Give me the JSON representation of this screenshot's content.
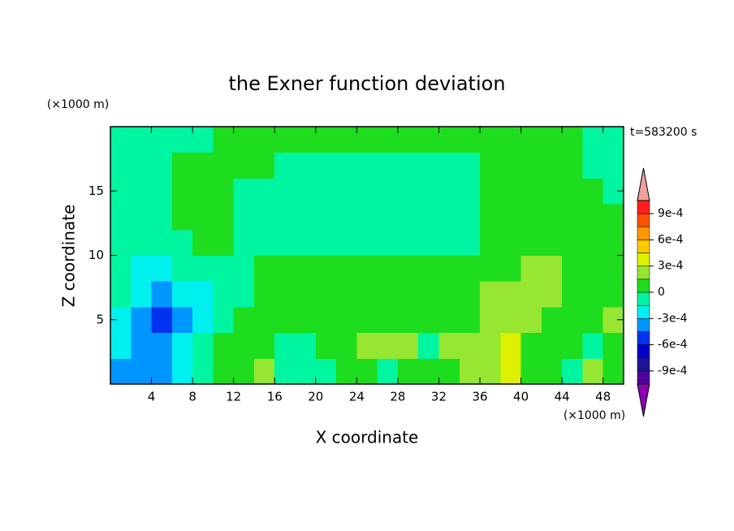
{
  "chart_data": {
    "type": "contour",
    "title": "the Exner function deviation",
    "xlabel": "X coordinate",
    "ylabel": "Z coordinate",
    "x_unit": "(×1000 m)",
    "y_unit": "(×1000 m)",
    "annotation": "t=583200 s",
    "xlim": [
      0,
      50
    ],
    "ylim": [
      0,
      20
    ],
    "xticks": [
      4,
      8,
      12,
      16,
      20,
      24,
      28,
      32,
      36,
      40,
      44,
      48
    ],
    "yticks": [
      5,
      10,
      15
    ],
    "x": [
      1,
      3,
      5,
      7,
      9,
      11,
      13,
      15,
      17,
      19,
      21,
      23,
      25,
      27,
      29,
      31,
      33,
      35,
      37,
      39,
      41,
      43,
      45,
      47,
      49
    ],
    "z": [
      1,
      3,
      5,
      7,
      9,
      11,
      13,
      15,
      17,
      19
    ],
    "values": [
      [
        -0.000375,
        -0.000375,
        -0.000375,
        -0.000225,
        -7.5e-05,
        7.5e-05,
        7.5e-05,
        0.000225,
        -7.5e-05,
        -7.5e-05,
        -7.5e-05,
        7.5e-05,
        7.5e-05,
        -7.5e-05,
        7.5e-05,
        7.5e-05,
        7.5e-05,
        0.000225,
        0.000225,
        0.000375,
        7.5e-05,
        7.5e-05,
        -7.5e-05,
        0.000225,
        7.5e-05
      ],
      [
        -0.000225,
        -0.000375,
        -0.000375,
        -0.000225,
        -7.5e-05,
        7.5e-05,
        7.5e-05,
        7.5e-05,
        -7.5e-05,
        -7.5e-05,
        7.5e-05,
        7.5e-05,
        0.000225,
        0.000225,
        0.000225,
        -7.5e-05,
        0.000225,
        0.000225,
        0.000225,
        0.000375,
        7.5e-05,
        7.5e-05,
        7.5e-05,
        -7.5e-05,
        7.5e-05
      ],
      [
        -0.000225,
        -0.000375,
        -0.000525,
        -0.000375,
        -0.000225,
        -7.5e-05,
        7.5e-05,
        7.5e-05,
        7.5e-05,
        7.5e-05,
        7.5e-05,
        7.5e-05,
        7.5e-05,
        7.5e-05,
        7.5e-05,
        7.5e-05,
        7.5e-05,
        7.5e-05,
        0.000225,
        0.000225,
        0.000225,
        7.5e-05,
        7.5e-05,
        7.5e-05,
        0.000225
      ],
      [
        -7.5e-05,
        -0.000225,
        -0.000375,
        -0.000225,
        -0.000225,
        -7.5e-05,
        -7.5e-05,
        7.5e-05,
        7.5e-05,
        7.5e-05,
        7.5e-05,
        7.5e-05,
        7.5e-05,
        7.5e-05,
        7.5e-05,
        7.5e-05,
        7.5e-05,
        7.5e-05,
        0.000225,
        0.000225,
        0.000225,
        0.000225,
        7.5e-05,
        7.5e-05,
        7.5e-05
      ],
      [
        -7.5e-05,
        -0.000225,
        -0.000225,
        -7.5e-05,
        -7.5e-05,
        -7.5e-05,
        -7.5e-05,
        7.5e-05,
        7.5e-05,
        7.5e-05,
        7.5e-05,
        7.5e-05,
        7.5e-05,
        7.5e-05,
        7.5e-05,
        7.5e-05,
        7.5e-05,
        7.5e-05,
        7.5e-05,
        7.5e-05,
        0.000225,
        0.000225,
        7.5e-05,
        7.5e-05,
        7.5e-05
      ],
      [
        -7.5e-05,
        -7.5e-05,
        -7.5e-05,
        -7.5e-05,
        7.5e-05,
        7.5e-05,
        -7.5e-05,
        -7.5e-05,
        -7.5e-05,
        -7.5e-05,
        -7.5e-05,
        -7.5e-05,
        -7.5e-05,
        -7.5e-05,
        -7.5e-05,
        -7.5e-05,
        -7.5e-05,
        -7.5e-05,
        7.5e-05,
        7.5e-05,
        7.5e-05,
        7.5e-05,
        7.5e-05,
        7.5e-05,
        7.5e-05
      ],
      [
        -7.5e-05,
        -7.5e-05,
        -7.5e-05,
        7.5e-05,
        7.5e-05,
        7.5e-05,
        -7.5e-05,
        -7.5e-05,
        -7.5e-05,
        -7.5e-05,
        -7.5e-05,
        -7.5e-05,
        -7.5e-05,
        -7.5e-05,
        -7.5e-05,
        -7.5e-05,
        -7.5e-05,
        -7.5e-05,
        7.5e-05,
        7.5e-05,
        7.5e-05,
        7.5e-05,
        7.5e-05,
        7.5e-05,
        7.5e-05
      ],
      [
        -7.5e-05,
        -7.5e-05,
        -7.5e-05,
        7.5e-05,
        7.5e-05,
        7.5e-05,
        -7.5e-05,
        -7.5e-05,
        -7.5e-05,
        -7.5e-05,
        -7.5e-05,
        -7.5e-05,
        -7.5e-05,
        -7.5e-05,
        -7.5e-05,
        -7.5e-05,
        -7.5e-05,
        -7.5e-05,
        7.5e-05,
        7.5e-05,
        7.5e-05,
        7.5e-05,
        7.5e-05,
        7.5e-05,
        -7.5e-05
      ],
      [
        -7.5e-05,
        -7.5e-05,
        -7.5e-05,
        7.5e-05,
        7.5e-05,
        7.5e-05,
        7.5e-05,
        7.5e-05,
        -7.5e-05,
        -7.5e-05,
        -7.5e-05,
        -7.5e-05,
        -7.5e-05,
        -7.5e-05,
        -7.5e-05,
        -7.5e-05,
        -7.5e-05,
        -7.5e-05,
        7.5e-05,
        7.5e-05,
        7.5e-05,
        7.5e-05,
        7.5e-05,
        -7.5e-05,
        -7.5e-05
      ],
      [
        -7.5e-05,
        -7.5e-05,
        -7.5e-05,
        -7.5e-05,
        -7.5e-05,
        7.5e-05,
        7.5e-05,
        7.5e-05,
        7.5e-05,
        7.5e-05,
        7.5e-05,
        7.5e-05,
        7.5e-05,
        7.5e-05,
        7.5e-05,
        7.5e-05,
        7.5e-05,
        7.5e-05,
        7.5e-05,
        7.5e-05,
        7.5e-05,
        7.5e-05,
        7.5e-05,
        -7.5e-05,
        -7.5e-05
      ]
    ],
    "colorbar": {
      "levels": [
        -0.00105,
        -0.0009,
        -0.00075,
        -0.0006,
        -0.00045,
        -0.0003,
        -0.00015,
        0,
        0.00015,
        0.0003,
        0.00045,
        0.0006,
        0.00075,
        0.0009,
        0.00105
      ],
      "colors": [
        "#50009c",
        "#1e1496",
        "#0000c8",
        "#0032f0",
        "#0096ff",
        "#00f0f0",
        "#00f5a0",
        "#1edc1e",
        "#96e632",
        "#dcf000",
        "#ffc800",
        "#ff9600",
        "#ff5000",
        "#ff1e1e"
      ],
      "under_color": "#8c00b4",
      "over_color": "#f0a0a0",
      "ticks": [
        {
          "value": -0.0009,
          "label": "-9e-4"
        },
        {
          "value": -0.0006,
          "label": "-6e-4"
        },
        {
          "value": -0.0003,
          "label": "-3e-4"
        },
        0,
        {
          "value": 0.0003,
          "label": "3e-4"
        },
        {
          "value": 0.0006,
          "label": "6e-4"
        },
        {
          "value": 0.0009,
          "label": "9e-4"
        }
      ]
    }
  }
}
